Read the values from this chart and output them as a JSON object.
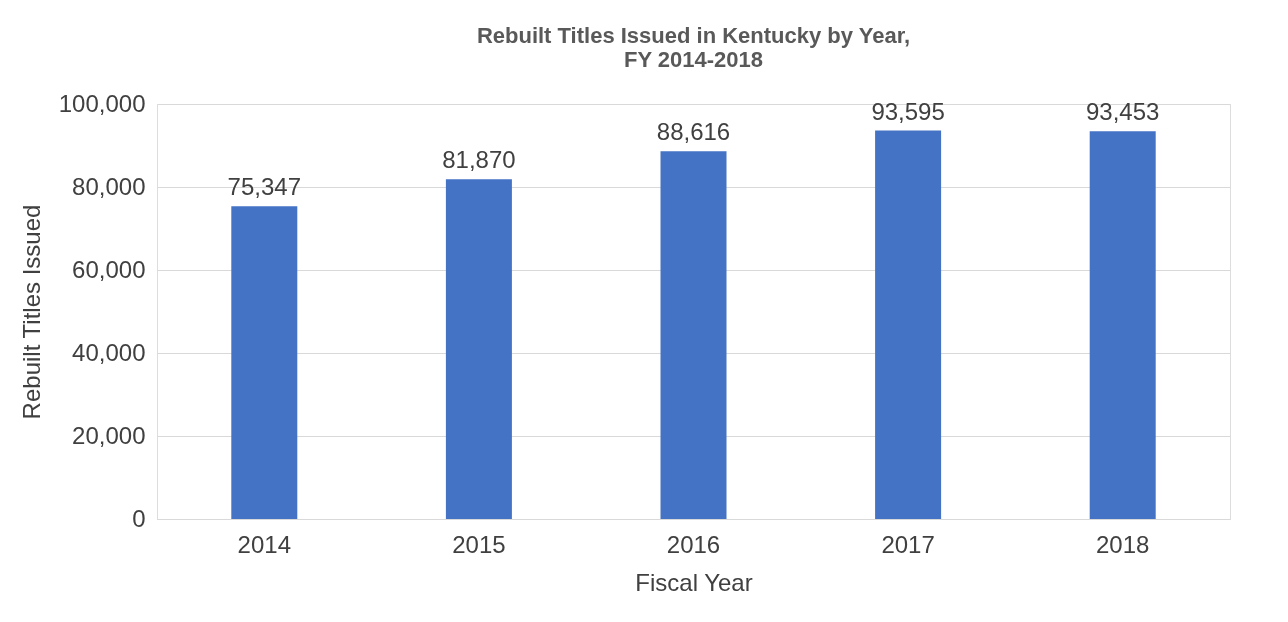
{
  "chart_data": {
    "type": "bar",
    "title": "Rebuilt Titles Issued in Kentucky by Year,\nFY 2014-2018",
    "xlabel": "Fiscal Year",
    "ylabel": "Rebuilt Titles Issued",
    "categories": [
      "2014",
      "2015",
      "2016",
      "2017",
      "2018"
    ],
    "values": [
      75347,
      81870,
      88616,
      93595,
      93453
    ],
    "value_labels": [
      "75,347",
      "81,870",
      "88,616",
      "93,595",
      "93,453"
    ],
    "color": "#4472c4",
    "ylim": [
      0,
      100000
    ],
    "yticks": [
      0,
      {
        "value": 20000,
        "label": "20,000"
      },
      {
        "value": 40000,
        "label": "40,000"
      },
      {
        "value": 60000,
        "label": "60,000"
      },
      {
        "value": 80000,
        "label": "80,000"
      },
      {
        "value": 100000,
        "label": "100,000"
      }
    ],
    "grid": "y"
  }
}
